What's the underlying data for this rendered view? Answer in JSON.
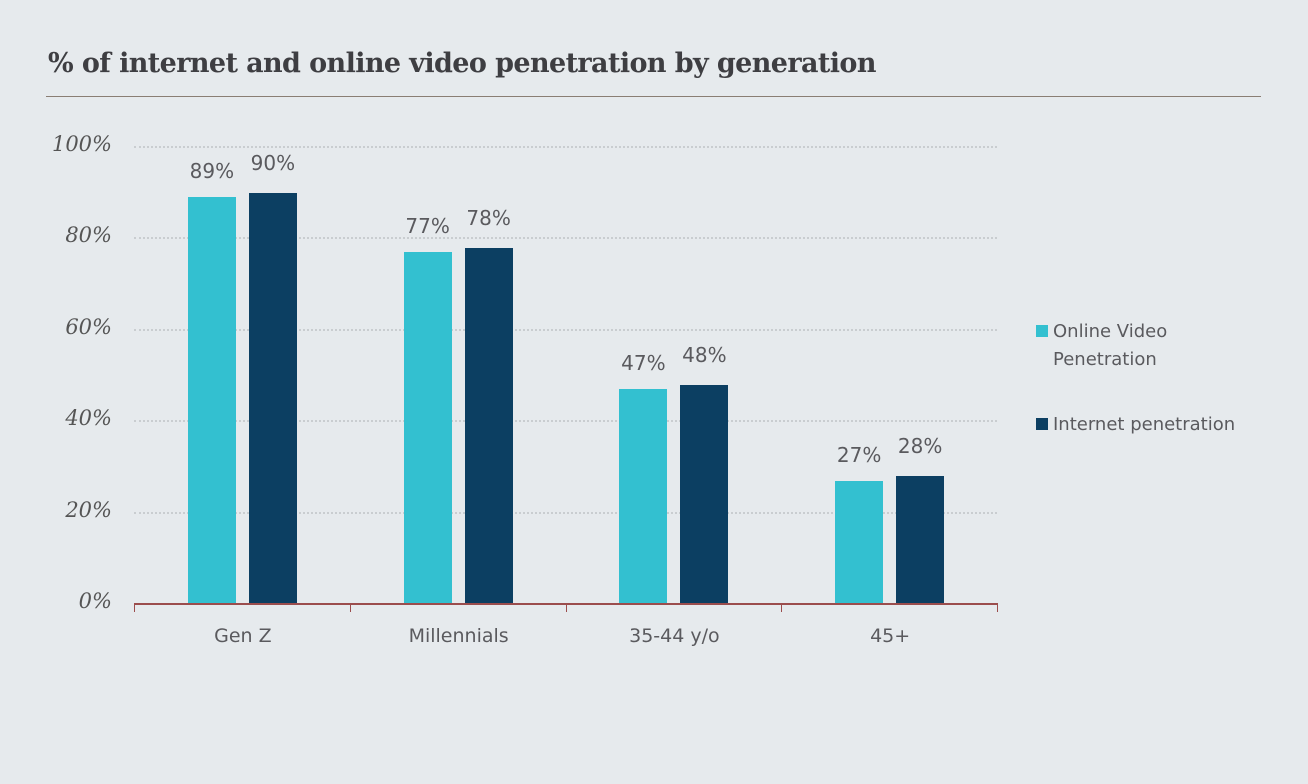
{
  "title": "% of internet and online video penetration by generation",
  "colors": {
    "online_video": "#33c0d0",
    "internet": "#0c3f62"
  },
  "y_axis": {
    "ticks": [
      "100%",
      "80%",
      "60%",
      "40%",
      "20%",
      "0%"
    ]
  },
  "categories": [
    "Gen Z",
    "Millennials",
    "35-44 y/o",
    "45+"
  ],
  "legend": [
    {
      "label": "Online Video Penetration",
      "lines": [
        "Online Video",
        "Penetration"
      ],
      "color": "#33c0d0"
    },
    {
      "label": "Internet penetration",
      "lines": [
        "Internet penetration"
      ],
      "color": "#0c3f62"
    }
  ],
  "labels": {
    "online_video": [
      "89%",
      "77%",
      "47%",
      "27%"
    ],
    "internet": [
      "90%",
      "78%",
      "48%",
      "28%"
    ]
  },
  "chart_data": {
    "type": "bar",
    "title": "% of internet and online video penetration by generation",
    "categories": [
      "Gen Z",
      "Millennials",
      "35-44 y/o",
      "45+"
    ],
    "series": [
      {
        "name": "Online Video Penetration",
        "values": [
          89,
          77,
          47,
          27
        ],
        "color": "#33c0d0"
      },
      {
        "name": "Internet penetration",
        "values": [
          90,
          78,
          48,
          28
        ],
        "color": "#0c3f62"
      }
    ],
    "xlabel": "",
    "ylabel": "",
    "ylim": [
      0,
      100
    ],
    "yticks": [
      0,
      20,
      40,
      60,
      80,
      100
    ],
    "grid": true,
    "legend_position": "right",
    "data_labels": true
  }
}
